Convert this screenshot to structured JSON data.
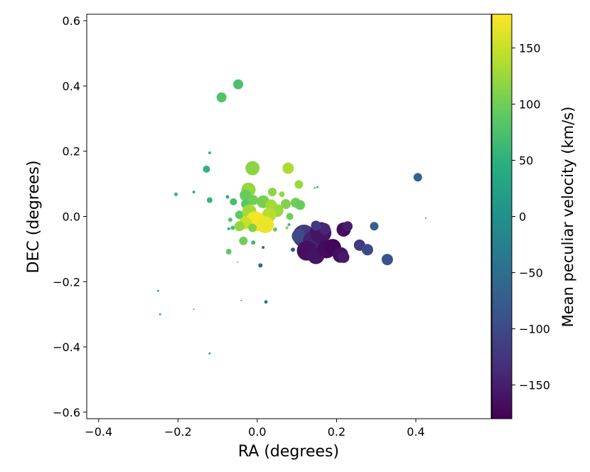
{
  "chart_data": {
    "type": "scatter",
    "title": "",
    "xlabel": "RA (degrees)",
    "ylabel": "DEC (degrees)",
    "xlim": [
      -0.43,
      0.59
    ],
    "ylim": [
      -0.62,
      0.62
    ],
    "x_ticks": [
      -0.4,
      -0.2,
      0.0,
      0.2,
      0.4
    ],
    "x_tick_labels": [
      "−0.4",
      "−0.2",
      "0.0",
      "0.2",
      "0.4"
    ],
    "y_ticks": [
      -0.6,
      -0.4,
      -0.2,
      0.0,
      0.2,
      0.4,
      0.6
    ],
    "y_tick_labels": [
      "−0.6",
      "−0.4",
      "−0.2",
      "0.0",
      "0.2",
      "0.4",
      "0.6"
    ],
    "grid": false,
    "colorbar": {
      "label": "Mean peculiar velocity (km/s)",
      "colormap": "viridis",
      "range": [
        -180,
        180
      ],
      "ticks": [
        150,
        100,
        50,
        0,
        -50,
        -100,
        -150
      ],
      "tick_labels": [
        "150",
        "100",
        "50",
        "0",
        "−50",
        "−100",
        "−150"
      ]
    },
    "points": [
      {
        "ra": -0.09,
        "dec": 0.365,
        "v": 80,
        "size": 7
      },
      {
        "ra": -0.048,
        "dec": 0.405,
        "v": 75,
        "size": 7
      },
      {
        "ra": 0.405,
        "dec": 0.12,
        "v": -65,
        "size": 6
      },
      {
        "ra": -0.012,
        "dec": 0.148,
        "v": 115,
        "size": 10
      },
      {
        "ra": 0.078,
        "dec": 0.148,
        "v": 135,
        "size": 8
      },
      {
        "ra": -0.12,
        "dec": 0.195,
        "v": 60,
        "size": 2
      },
      {
        "ra": -0.128,
        "dec": 0.145,
        "v": 55,
        "size": 5
      },
      {
        "ra": 0.105,
        "dec": 0.098,
        "v": 125,
        "size": 6
      },
      {
        "ra": -0.205,
        "dec": 0.068,
        "v": 55,
        "size": 2.5
      },
      {
        "ra": -0.16,
        "dec": 0.075,
        "v": 50,
        "size": 2
      },
      {
        "ra": -0.12,
        "dec": 0.05,
        "v": 55,
        "size": 4
      },
      {
        "ra": -0.022,
        "dec": 0.082,
        "v": 120,
        "size": 10
      },
      {
        "ra": -0.03,
        "dec": 0.065,
        "v": 95,
        "size": 8
      },
      {
        "ra": -0.028,
        "dec": 0.038,
        "v": 85,
        "size": 7
      },
      {
        "ra": 0.038,
        "dec": 0.075,
        "v": 115,
        "size": 6
      },
      {
        "ra": 0.062,
        "dec": 0.068,
        "v": 120,
        "size": 4
      },
      {
        "ra": 0.05,
        "dec": 0.018,
        "v": 125,
        "size": 9
      },
      {
        "ra": 0.015,
        "dec": 0.045,
        "v": 105,
        "size": 9
      },
      {
        "ra": 0.072,
        "dec": 0.038,
        "v": 110,
        "size": 7
      },
      {
        "ra": 0.097,
        "dec": 0.042,
        "v": 100,
        "size": 7
      },
      {
        "ra": 0.108,
        "dec": 0.035,
        "v": 95,
        "size": 7
      },
      {
        "ra": -0.01,
        "dec": 0.05,
        "v": 100,
        "size": 7
      },
      {
        "ra": 0.035,
        "dec": 0.035,
        "v": 130,
        "size": 8
      },
      {
        "ra": -0.06,
        "dec": 0.045,
        "v": 70,
        "size": 5
      },
      {
        "ra": -0.075,
        "dec": 0.06,
        "v": 45,
        "size": 2.5
      },
      {
        "ra": -0.045,
        "dec": 0.005,
        "v": 90,
        "size": 6
      },
      {
        "ra": -0.02,
        "dec": 0.015,
        "v": 130,
        "size": 10
      },
      {
        "ra": 0.03,
        "dec": 0.005,
        "v": 140,
        "size": 10
      },
      {
        "ra": -0.005,
        "dec": -0.015,
        "v": 175,
        "size": 14
      },
      {
        "ra": 0.02,
        "dec": -0.025,
        "v": 170,
        "size": 12
      },
      {
        "ra": -0.03,
        "dec": -0.02,
        "v": 150,
        "size": 9
      },
      {
        "ra": -0.045,
        "dec": -0.03,
        "v": 120,
        "size": 7
      },
      {
        "ra": -0.012,
        "dec": -0.035,
        "v": 110,
        "size": 6
      },
      {
        "ra": 0.082,
        "dec": 0.0,
        "v": 100,
        "size": 5
      },
      {
        "ra": -0.068,
        "dec": -0.01,
        "v": 80,
        "size": 3
      },
      {
        "ra": -0.062,
        "dec": -0.035,
        "v": 70,
        "size": 3
      },
      {
        "ra": -0.072,
        "dec": -0.038,
        "v": 55,
        "size": 2
      },
      {
        "ra": 0.045,
        "dec": -0.04,
        "v": 95,
        "size": 3
      },
      {
        "ra": 0.075,
        "dec": -0.035,
        "v": 110,
        "size": 2
      },
      {
        "ra": 0.08,
        "dec": -0.025,
        "v": 60,
        "size": 2
      },
      {
        "ra": 0.145,
        "dec": 0.088,
        "v": 90,
        "size": 1.5
      },
      {
        "ra": 0.152,
        "dec": 0.09,
        "v": 60,
        "size": 1.5
      },
      {
        "ra": -0.035,
        "dec": -0.075,
        "v": 100,
        "size": 6
      },
      {
        "ra": -0.01,
        "dec": -0.08,
        "v": 60,
        "size": 3
      },
      {
        "ra": -0.072,
        "dec": -0.108,
        "v": 90,
        "size": 4
      },
      {
        "ra": -0.05,
        "dec": -0.14,
        "v": 70,
        "size": 1
      },
      {
        "ra": 0.015,
        "dec": -0.095,
        "v": -60,
        "size": 2
      },
      {
        "ra": 0.09,
        "dec": -0.102,
        "v": -80,
        "size": 3
      },
      {
        "ra": 0.008,
        "dec": -0.15,
        "v": -60,
        "size": 3
      },
      {
        "ra": -0.25,
        "dec": -0.228,
        "v": 50,
        "size": 1.5
      },
      {
        "ra": -0.245,
        "dec": -0.3,
        "v": 45,
        "size": 1.5
      },
      {
        "ra": -0.16,
        "dec": -0.285,
        "v": 40,
        "size": 1
      },
      {
        "ra": -0.04,
        "dec": -0.258,
        "v": 30,
        "size": 1
      },
      {
        "ra": 0.022,
        "dec": -0.262,
        "v": -20,
        "size": 2.5
      },
      {
        "ra": -0.12,
        "dec": -0.42,
        "v": 40,
        "size": 1.5
      },
      {
        "ra": 0.425,
        "dec": -0.005,
        "v": 20,
        "size": 1
      },
      {
        "ra": 0.118,
        "dec": -0.06,
        "v": -120,
        "size": 16
      },
      {
        "ra": 0.105,
        "dec": -0.06,
        "v": -100,
        "size": 10
      },
      {
        "ra": 0.14,
        "dec": -0.075,
        "v": -145,
        "size": 14
      },
      {
        "ra": 0.16,
        "dec": -0.05,
        "v": -160,
        "size": 15
      },
      {
        "ra": 0.125,
        "dec": -0.105,
        "v": -165,
        "size": 14
      },
      {
        "ra": 0.148,
        "dec": -0.12,
        "v": -160,
        "size": 12
      },
      {
        "ra": 0.175,
        "dec": -0.1,
        "v": -170,
        "size": 13
      },
      {
        "ra": 0.19,
        "dec": -0.095,
        "v": -175,
        "size": 12
      },
      {
        "ra": 0.21,
        "dec": -0.118,
        "v": -165,
        "size": 11
      },
      {
        "ra": 0.218,
        "dec": -0.125,
        "v": -155,
        "size": 8
      },
      {
        "ra": 0.218,
        "dec": -0.04,
        "v": -170,
        "size": 10
      },
      {
        "ra": 0.228,
        "dec": -0.03,
        "v": -150,
        "size": 7
      },
      {
        "ra": 0.17,
        "dec": -0.038,
        "v": -140,
        "size": 8
      },
      {
        "ra": 0.148,
        "dec": -0.028,
        "v": -120,
        "size": 7
      },
      {
        "ra": 0.258,
        "dec": -0.088,
        "v": -120,
        "size": 8
      },
      {
        "ra": 0.278,
        "dec": -0.102,
        "v": -100,
        "size": 8
      },
      {
        "ra": 0.295,
        "dec": -0.03,
        "v": -70,
        "size": 6
      },
      {
        "ra": 0.328,
        "dec": -0.132,
        "v": -90,
        "size": 8
      }
    ]
  }
}
